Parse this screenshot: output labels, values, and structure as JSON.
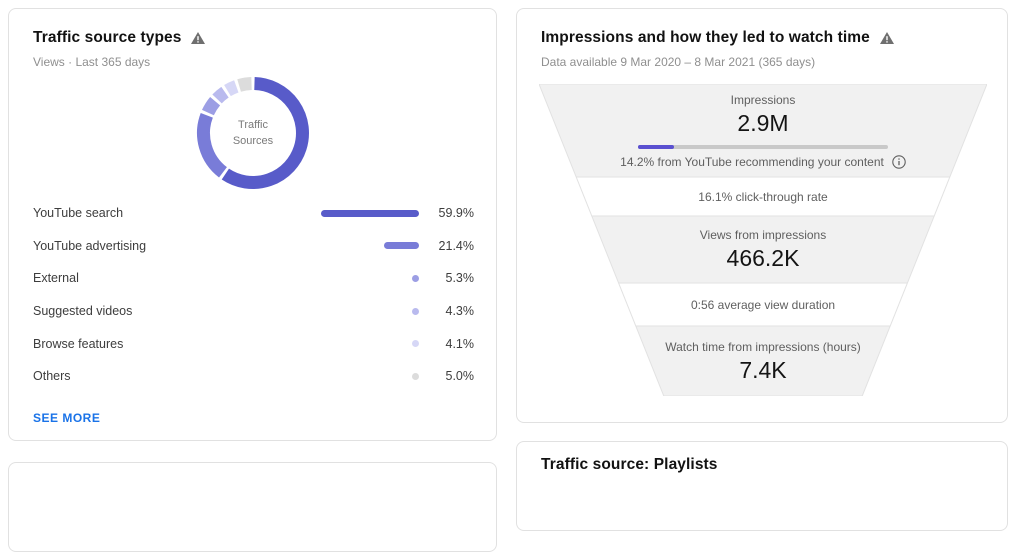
{
  "colors": {
    "accent_purple": "#5a50d0",
    "link_blue": "#1a73e8",
    "funnel_fill": "#f1f1f1",
    "funnel_line": "#e2e2e2",
    "progress_track": "#c9c9c9"
  },
  "cards": {
    "traffic": {
      "title": "Traffic source types",
      "subtitle": "Views · Last 365 days",
      "donut_center_line1": "Traffic",
      "donut_center_line2": "Sources",
      "see_more": "SEE MORE"
    },
    "funnel": {
      "title": "Impressions and how they led to watch time",
      "subtitle": "Data available 9 Mar 2020 – 8 Mar 2021 (365 days)",
      "recommend_pct": 14.2,
      "sections": {
        "impressions_label": "Impressions",
        "impressions_value": "2.9M",
        "impressions_note": "14.2% from YouTube recommending your content",
        "ctr": "16.1% click-through rate",
        "views_label": "Views from impressions",
        "views_value": "466.2K",
        "avd": "0:56 average view duration",
        "watch_label": "Watch time from impressions (hours)",
        "watch_value": "7.4K"
      }
    },
    "playlists": {
      "title": "Traffic source: Playlists"
    }
  },
  "chart_data": [
    {
      "type": "pie",
      "donut": true,
      "title": "Traffic source types",
      "subtitle": "Views · Last 365 days",
      "center_label": "Traffic Sources",
      "categories": [
        "YouTube search",
        "YouTube advertising",
        "External",
        "Suggested videos",
        "Browse features",
        "Others"
      ],
      "values": [
        59.9,
        21.4,
        5.3,
        4.3,
        4.1,
        5.0
      ],
      "value_labels": [
        "59.9%",
        "21.4%",
        "5.3%",
        "4.3%",
        "4.1%",
        "5.0%"
      ],
      "colors": [
        "#585bc9",
        "#797cd8",
        "#9c9ee4",
        "#b9baee",
        "#d6d7f6",
        "#dcdcdc"
      ],
      "legend_position": "bottom-list"
    },
    {
      "type": "table",
      "layout_hint": "funnel",
      "title": "Impressions and how they led to watch time",
      "subtitle": "Data available 9 Mar 2020 – 8 Mar 2021 (365 days)",
      "rows": [
        [
          "Impressions",
          "2.9M"
        ],
        [
          "From YouTube recommending your content",
          "14.2%"
        ],
        [
          "Click-through rate",
          "16.1%"
        ],
        [
          "Views from impressions",
          "466.2K"
        ],
        [
          "Average view duration",
          "0:56"
        ],
        [
          "Watch time from impressions (hours)",
          "7.4K"
        ]
      ]
    }
  ]
}
